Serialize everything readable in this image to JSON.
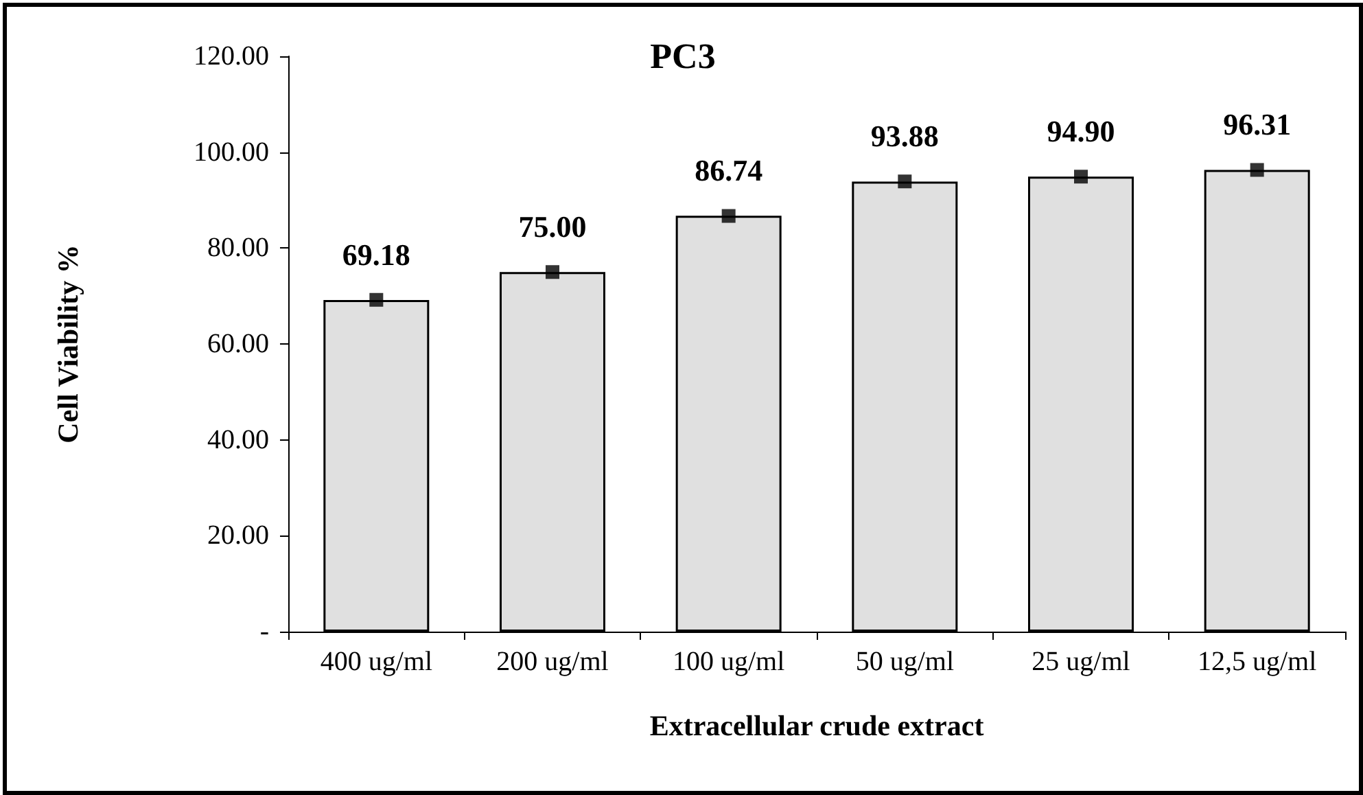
{
  "chart_data": {
    "type": "bar",
    "title": "PC3",
    "xlabel": "Extracellular crude extract",
    "ylabel": "Cell Viability %",
    "categories": [
      "400 ug/ml",
      "200 ug/ml",
      "100 ug/ml",
      "50 ug/ml",
      "25 ug/ml",
      "12,5 ug/ml"
    ],
    "series": [
      {
        "color": "#e0e0e0",
        "values": [
          69.18,
          75.0,
          86.74,
          93.88,
          94.9,
          96.31
        ],
        "value_labels": [
          "69.18",
          "75.00",
          "86.74",
          "93.88",
          "94.90",
          "96.31"
        ]
      },
      {
        "type": "scatter",
        "color": "#000000",
        "marker": "square",
        "x": [
          "400 ug/ml",
          "200 ug/ml",
          "100 ug/ml",
          "50 ug/ml",
          "25 ug/ml",
          "12,5 ug/ml"
        ],
        "values": [
          69.2,
          75.0,
          86.7,
          93.9,
          94.9,
          96.3
        ]
      }
    ],
    "grid": false,
    "ylim": [
      0,
      120
    ],
    "yticks": [
      {
        "value": 0,
        "label": "-"
      },
      {
        "value": 20,
        "label": "20.00"
      },
      {
        "value": 40,
        "label": "40.00"
      },
      {
        "value": 60,
        "label": "60.00"
      },
      {
        "value": 80,
        "label": "80.00"
      },
      {
        "value": 100,
        "label": "100.00"
      },
      {
        "value": 120,
        "label": "120.00"
      }
    ]
  }
}
